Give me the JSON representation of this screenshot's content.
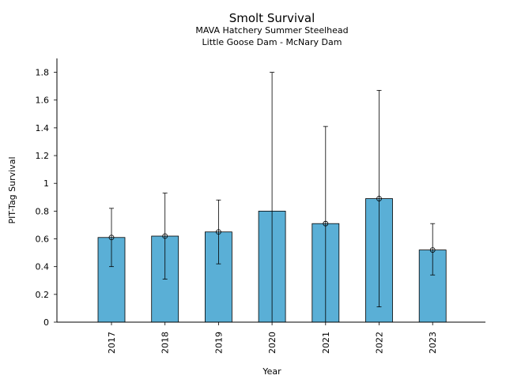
{
  "chart_data": {
    "type": "bar",
    "title": "Smolt Survival",
    "subtitle_lines": [
      "MAVA Hatchery Summer Steelhead",
      "Little Goose Dam - McNary Dam"
    ],
    "xlabel": "Year",
    "ylabel": "PIT-Tag Survival",
    "categories": [
      "2017",
      "2018",
      "2019",
      "2020",
      "2021",
      "2022",
      "2023"
    ],
    "values": [
      0.61,
      0.62,
      0.65,
      0.8,
      0.71,
      0.89,
      0.52
    ],
    "error_low": [
      0.4,
      0.31,
      0.42,
      0.0,
      0.0,
      0.11,
      0.34
    ],
    "error_high": [
      0.82,
      0.93,
      0.88,
      1.8,
      1.41,
      1.67,
      0.71
    ],
    "point_marker_values": [
      0.61,
      0.62,
      0.65,
      null,
      0.71,
      0.89,
      0.52
    ],
    "ylim": [
      0,
      1.9
    ],
    "yticks": [
      0,
      0.2,
      0.4,
      0.6,
      0.8,
      1,
      1.2,
      1.4,
      1.6,
      1.8
    ],
    "ytick_labels": [
      "0",
      "0.2",
      "0.4",
      "0.6",
      "0.8",
      "1",
      "1.2",
      "1.4",
      "1.6",
      "1.8"
    ],
    "grid": false,
    "legend": "none",
    "bar_color": "#5aafd6",
    "edge_color": "#000000"
  }
}
